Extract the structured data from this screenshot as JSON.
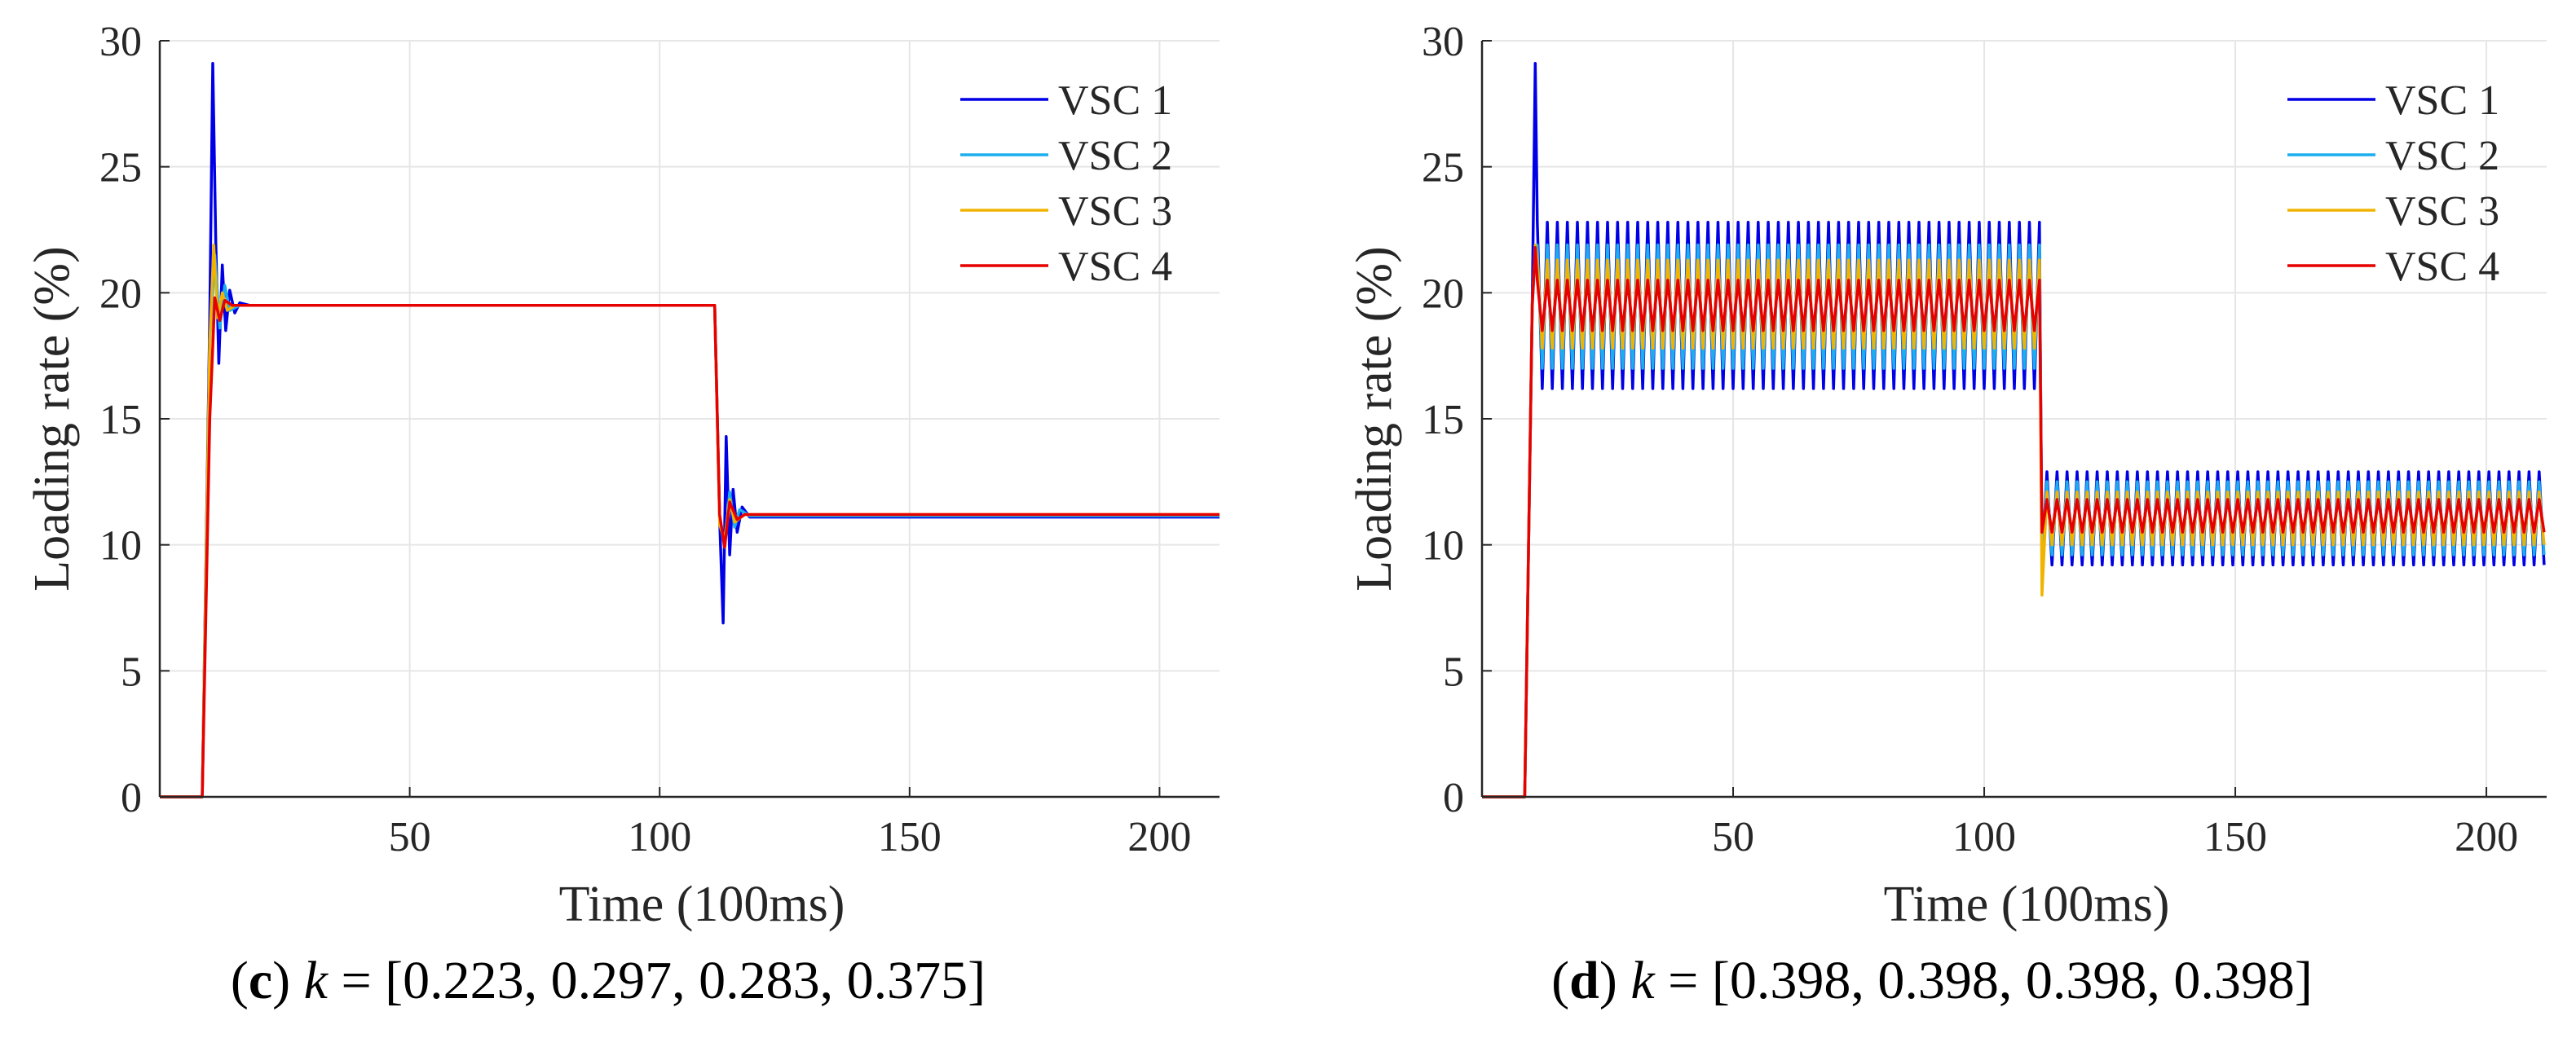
{
  "colors": {
    "VSC 1": "#0000e6",
    "VSC 2": "#1aaeee",
    "VSC 3": "#f0b400",
    "VSC 4": "#e60000",
    "grid": "#e6e6e6",
    "axis": "#262626"
  },
  "chart_data": [
    {
      "type": "line",
      "panel": "c",
      "caption": {
        "letter": "c",
        "k": "k",
        "rest": " = [0.223, 0.297, 0.283, 0.375]"
      },
      "xlabel": "Time (100ms)",
      "ylabel": "Loading rate (%)",
      "xlim": [
        0,
        212
      ],
      "ylim": [
        0,
        30
      ],
      "xticks": [
        50,
        100,
        150,
        200
      ],
      "yticks": [
        0,
        5,
        10,
        15,
        20,
        25,
        30
      ],
      "grid": true,
      "legend_position": "top-right",
      "legend": [
        "VSC 1",
        "VSC 2",
        "VSC 3",
        "VSC 4"
      ],
      "series": [
        {
          "name": "VSC 1",
          "x": [
            0,
            8.5,
            10,
            10.6,
            11.2,
            11.8,
            12.5,
            13.2,
            14,
            15,
            16,
            18,
            111,
            112,
            112.7,
            113.3,
            114,
            114.7,
            115.5,
            116.5,
            118,
            212
          ],
          "y": [
            0,
            0,
            19,
            29.1,
            22,
            17.2,
            21.1,
            18.5,
            20.1,
            19.2,
            19.6,
            19.5,
            19.5,
            11,
            6.9,
            14.3,
            9.6,
            12.2,
            10.5,
            11.5,
            11.1,
            11.1
          ]
        },
        {
          "name": "VSC 2",
          "x": [
            0,
            8.5,
            10,
            11,
            12,
            13,
            14,
            16,
            111,
            112,
            113,
            114,
            115,
            116,
            118,
            212
          ],
          "y": [
            0,
            0,
            18,
            21.5,
            18.6,
            20.3,
            19.3,
            19.5,
            19.5,
            11,
            9.9,
            12.1,
            10.7,
            11.4,
            11.15,
            11.15
          ]
        },
        {
          "name": "VSC 3",
          "x": [
            0,
            8.5,
            10,
            10.8,
            11.6,
            12.5,
            13.5,
            15,
            111,
            112,
            113,
            114,
            115,
            117,
            212
          ],
          "y": [
            0,
            0,
            18,
            21.9,
            19,
            20,
            19.3,
            19.5,
            19.5,
            10.8,
            10.2,
            11.8,
            10.9,
            11.2,
            11.2
          ]
        },
        {
          "name": "VSC 4",
          "x": [
            0,
            8.5,
            10,
            11,
            12,
            13,
            14.5,
            111,
            112,
            113,
            114,
            115.5,
            117,
            212
          ],
          "y": [
            0,
            0,
            15,
            19.8,
            18.9,
            19.7,
            19.5,
            19.5,
            11.2,
            9.9,
            11.7,
            11,
            11.2,
            11.2
          ]
        }
      ]
    },
    {
      "type": "line",
      "panel": "d",
      "caption": {
        "letter": "d",
        "k": "k",
        "rest": " = [0.398, 0.398, 0.398, 0.398]"
      },
      "xlabel": "Time (100ms)",
      "ylabel": "Loading rate (%)",
      "xlim": [
        0,
        212
      ],
      "ylim": [
        0,
        30
      ],
      "xticks": [
        50,
        100,
        150,
        200
      ],
      "yticks": [
        0,
        5,
        10,
        15,
        20,
        25,
        30
      ],
      "grid": true,
      "legend_position": "top-right",
      "legend": [
        "VSC 1",
        "VSC 2",
        "VSC 3",
        "VSC 4"
      ],
      "oscillation": {
        "start": 11,
        "switch": 111.5,
        "end": 212,
        "period": 2.0
      },
      "series": [
        {
          "name": "VSC 1",
          "spike": 29.1,
          "phase1": {
            "min": 16.2,
            "max": 22.8
          },
          "phase2": {
            "min": 9.2,
            "max": 12.9
          }
        },
        {
          "name": "VSC 2",
          "spike": 21.5,
          "phase1": {
            "min": 17.0,
            "max": 21.9
          },
          "phase2": {
            "min": 9.6,
            "max": 12.5
          }
        },
        {
          "name": "VSC 3",
          "spike": 21.9,
          "dip": 8.0,
          "phase1": {
            "min": 17.8,
            "max": 21.3
          },
          "phase2": {
            "min": 10.0,
            "max": 12.1
          }
        },
        {
          "name": "VSC 4",
          "spike": 21.8,
          "phase1": {
            "min": 18.5,
            "max": 20.5
          },
          "phase2": {
            "min": 10.5,
            "max": 11.8
          }
        }
      ]
    }
  ]
}
